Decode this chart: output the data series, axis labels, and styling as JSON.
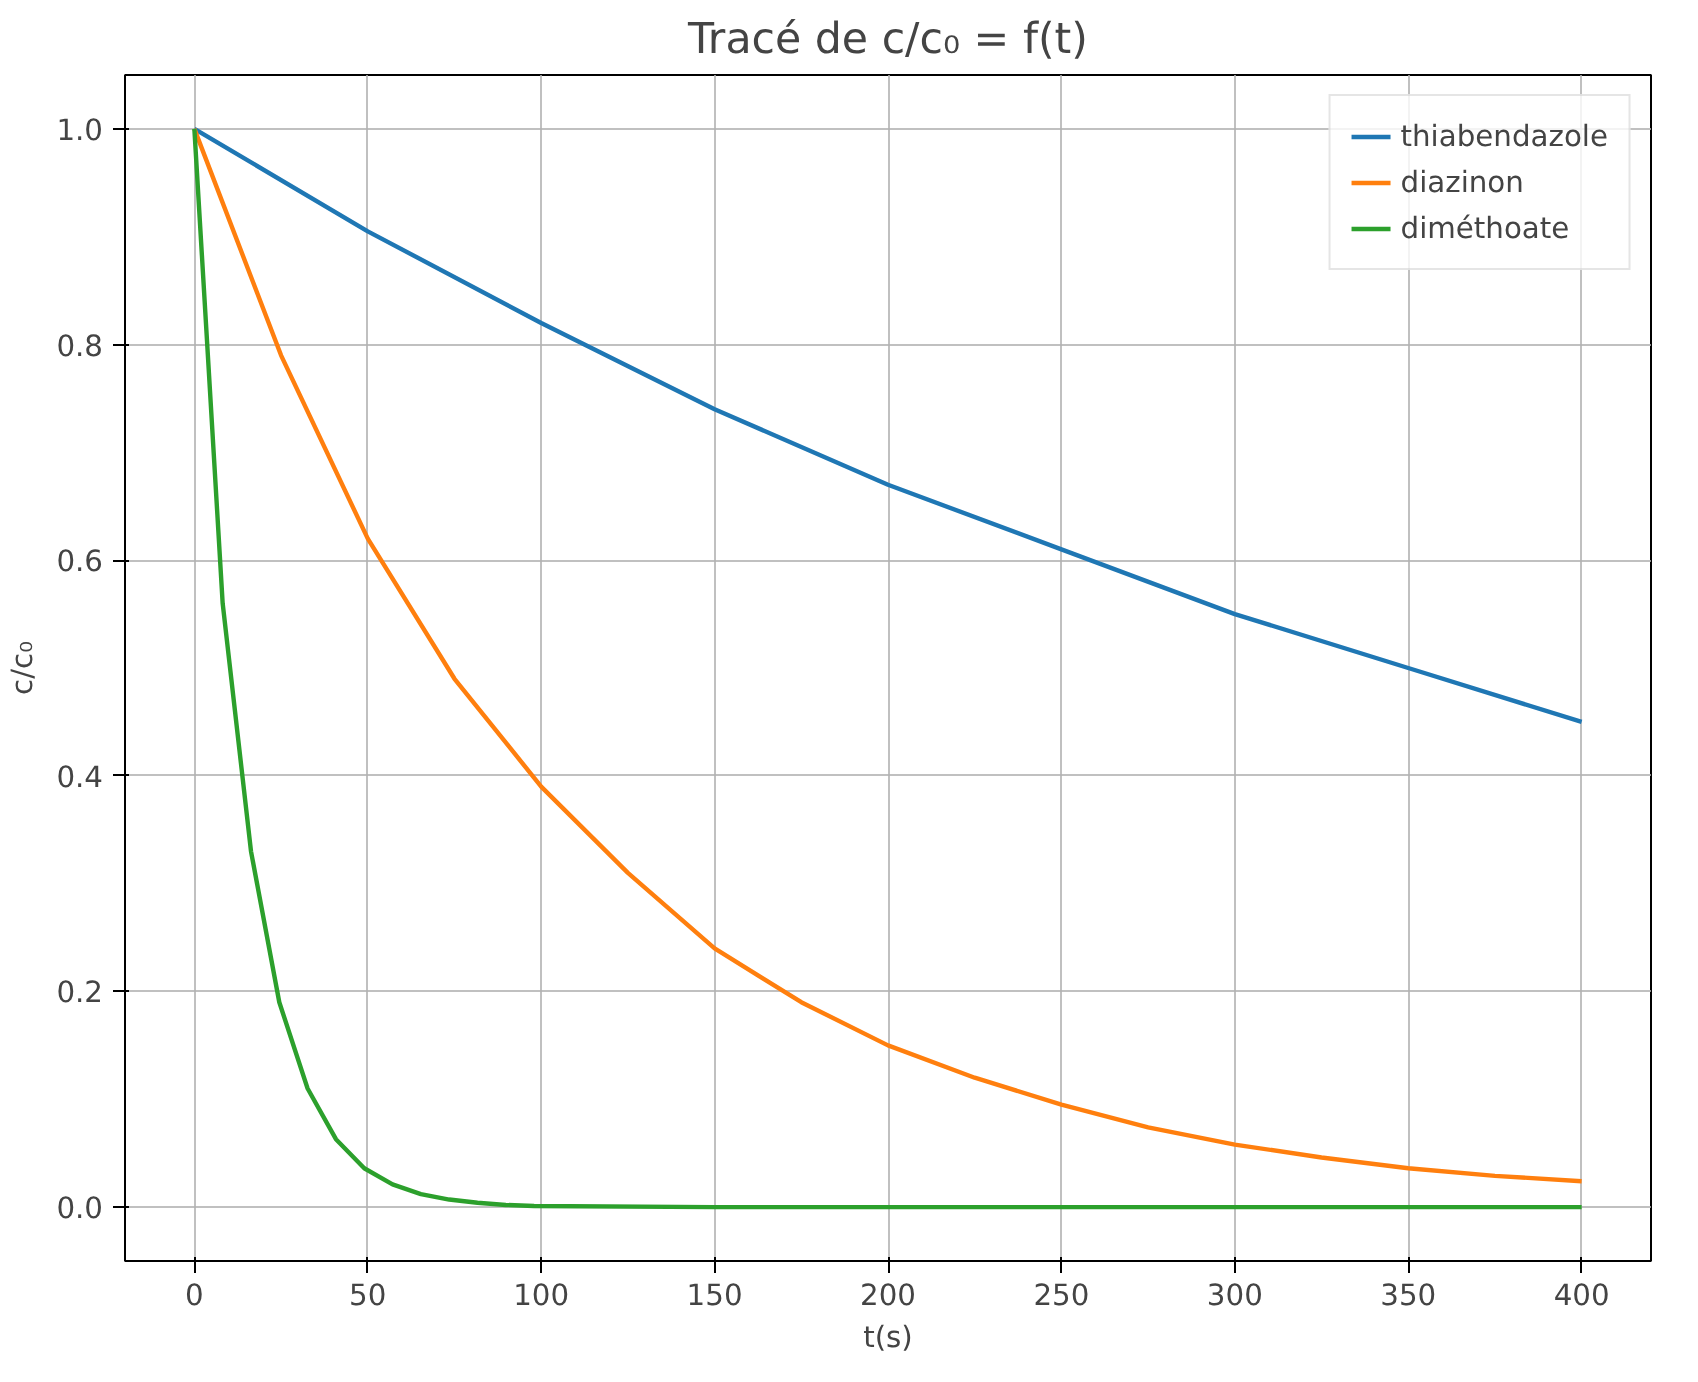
{
  "chart_data": {
    "type": "line",
    "title": "Tracé de c/c₀ = f(t)",
    "xlabel": "t(s)",
    "ylabel": "c/c₀",
    "xlim": [
      -20,
      420
    ],
    "ylim": [
      -0.05,
      1.05
    ],
    "xticks": [
      0,
      50,
      100,
      150,
      200,
      250,
      300,
      350,
      400
    ],
    "yticks": [
      {
        "value": 0,
        "label": "0.0"
      },
      {
        "value": 0.2,
        "label": "0.2"
      },
      {
        "value": 0.4,
        "label": "0.4"
      },
      {
        "value": 0.6,
        "label": "0.6"
      },
      {
        "value": 0.8,
        "label": "0.8"
      },
      {
        "value": 1,
        "label": "1.0"
      }
    ],
    "grid": true,
    "legend": "top right",
    "line_style": "solid",
    "series": [
      {
        "name": "thiabendazole",
        "color": "#1f77b4",
        "x": [
          0,
          50,
          100,
          150,
          200,
          250,
          300,
          350,
          400
        ],
        "values": [
          1.0,
          0.905,
          0.82,
          0.74,
          0.67,
          0.61,
          0.55,
          0.5,
          0.45
        ]
      },
      {
        "name": "diazinon",
        "color": "#ff7f0e",
        "x": [
          0,
          25,
          50,
          75,
          100,
          125,
          150,
          175,
          200,
          225,
          250,
          275,
          300,
          325,
          350,
          375,
          400
        ],
        "values": [
          1.0,
          0.79,
          0.62,
          0.49,
          0.39,
          0.31,
          0.24,
          0.19,
          0.15,
          0.12,
          0.095,
          0.074,
          0.058,
          0.046,
          0.036,
          0.029,
          0.024
        ]
      },
      {
        "name": "diméthoate",
        "color": "#2ca02c",
        "x": [
          0,
          8.16,
          16.33,
          24.49,
          32.65,
          40.82,
          48.98,
          57.14,
          65.31,
          73.47,
          81.63,
          89.8,
          97.96,
          150,
          200,
          300,
          400
        ],
        "values": [
          1.0,
          0.56,
          0.33,
          0.19,
          0.11,
          0.063,
          0.036,
          0.021,
          0.012,
          0.007,
          0.004,
          0.002,
          0.001,
          0.0,
          0.0,
          0.0,
          0.0
        ]
      }
    ]
  }
}
